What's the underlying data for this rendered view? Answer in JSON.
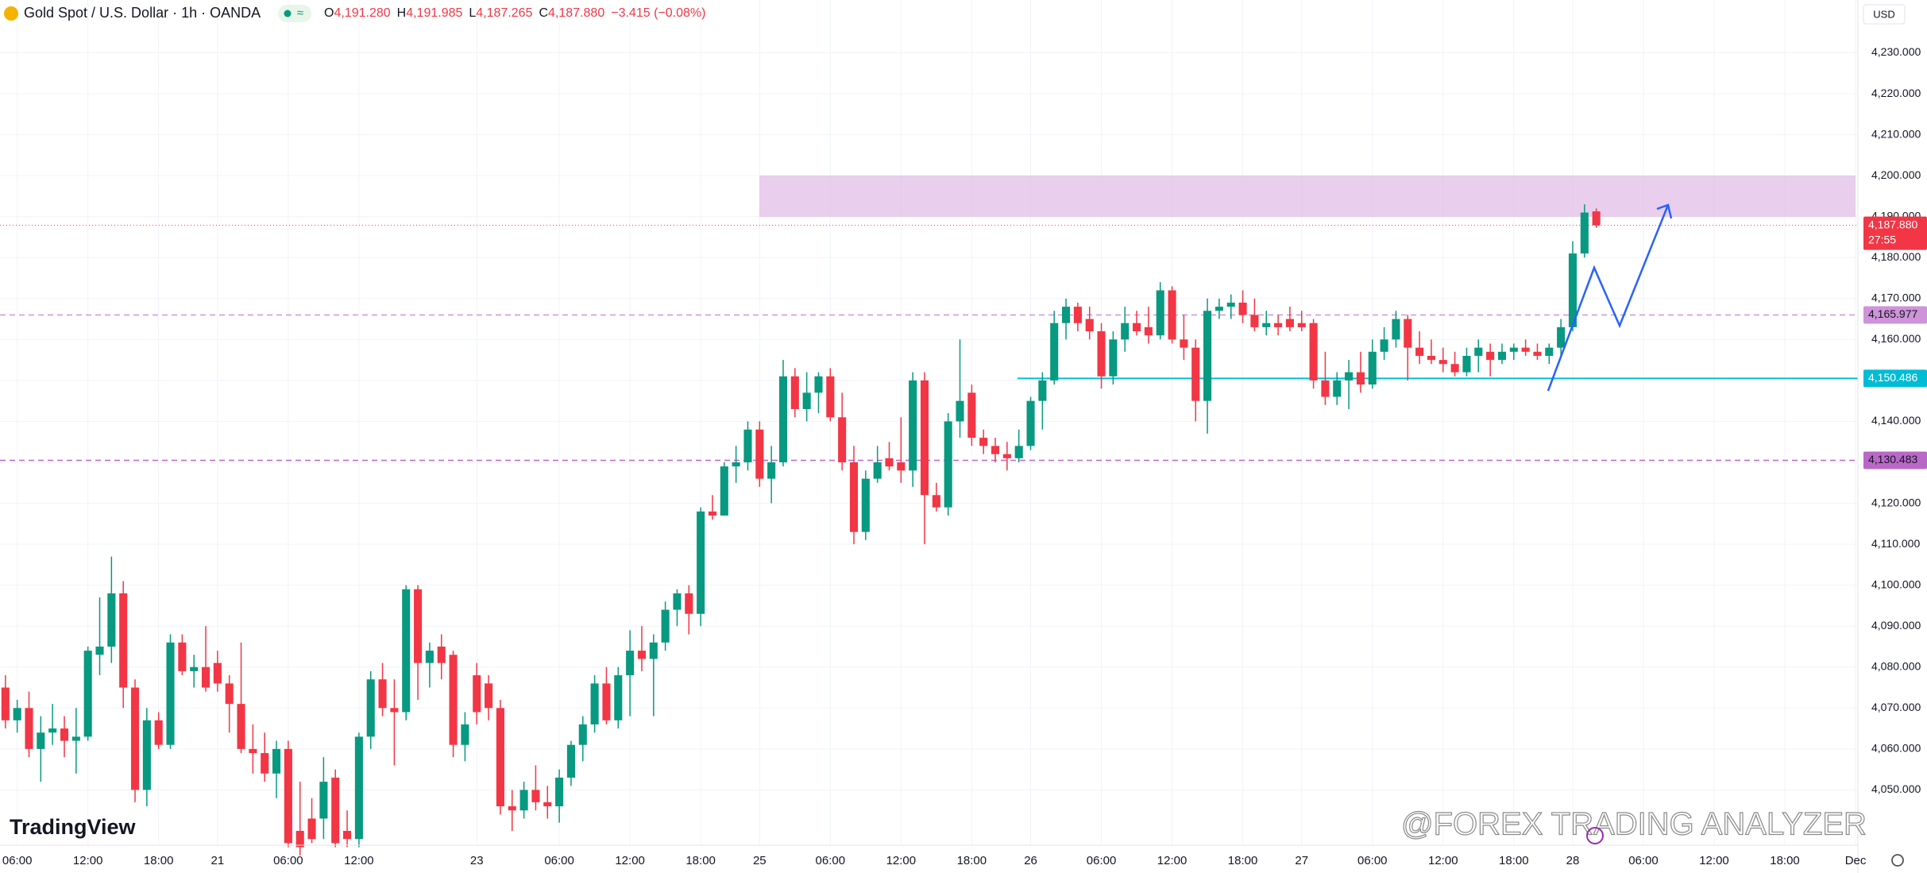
{
  "chart_data": {
    "type": "candlestick",
    "title": "Gold Spot / U.S. Dollar · 1h · OANDA",
    "legend": {
      "labels": [
        "O",
        "H",
        "L",
        "C"
      ],
      "values": [
        "4,191.280",
        "4,191.985",
        "4,187.265",
        "4,187.880"
      ],
      "change": "−3.415 (−0.08%)"
    },
    "currency": "USD",
    "up_color": "#089981",
    "down_color": "#f23645",
    "open": [
      4075,
      4067,
      4070,
      4060,
      4064,
      4065,
      4062,
      4063,
      4083,
      4085,
      4098,
      4075,
      4050,
      4067,
      4061,
      4086,
      4079,
      4080,
      4081,
      4076,
      4071,
      4060,
      4059,
      4054,
      4060,
      4040,
      4043,
      4043,
      4053,
      4040,
      4038,
      4063,
      4077,
      4070,
      4069,
      4099,
      4081,
      4085,
      4083,
      4061,
      4078,
      4076,
      4070,
      4046,
      4045,
      4050,
      4047,
      4046,
      4053,
      4061,
      4066,
      4076,
      4067,
      4078,
      4084,
      4082,
      4086,
      4094,
      4098,
      4093,
      4118,
      4117,
      4129,
      4130,
      4138,
      4126,
      4130,
      4151,
      4143,
      4147,
      4151,
      4141,
      4130,
      4113,
      4126,
      4131,
      4130,
      4128,
      4150,
      4122,
      4119,
      4140,
      4147,
      4136,
      4134,
      4132,
      4131,
      4134,
      4145,
      4150,
      4164,
      4168,
      4165,
      4162,
      4151,
      4160,
      4164,
      4163,
      4161,
      4172,
      4160,
      4158,
      4145,
      4167,
      4168,
      4169,
      4166,
      4163,
      4164,
      4165,
      4164,
      4164,
      4150,
      4146,
      4150,
      4152,
      4149,
      4157,
      4160,
      4165,
      4158,
      4156,
      4155,
      4154,
      4152,
      4156,
      4157,
      4155,
      4157,
      4158,
      4157,
      4156,
      4158,
      4163,
      4181,
      4191.28
    ],
    "high": [
      4078,
      4072,
      4074,
      4068,
      4071,
      4068,
      4070,
      4085,
      4097,
      4107,
      4101,
      4077,
      4070,
      4069,
      4088,
      4088,
      4083,
      4090,
      4084,
      4078,
      4086,
      4066,
      4064,
      4062,
      4062,
      4052,
      4048,
      4058,
      4055,
      4045,
      4064,
      4079,
      4081,
      4077,
      4100,
      4100,
      4086,
      4088,
      4084,
      4069,
      4081,
      4078,
      4072,
      4050,
      4052,
      4056,
      4051,
      4055,
      4062,
      4068,
      4078,
      4080,
      4080,
      4089,
      4090,
      4088,
      4096,
      4099,
      4100,
      4119,
      4122,
      4130,
      4134,
      4140,
      4140,
      4134,
      4155,
      4153,
      4152,
      4152,
      4153,
      4147,
      4134,
      4128,
      4134,
      4135,
      4141,
      4152,
      4152,
      4125,
      4142,
      4160,
      4149,
      4138,
      4136,
      4135,
      4138,
      4146,
      4152,
      4167,
      4170,
      4169,
      4168,
      4164,
      4162,
      4168,
      4167,
      4168,
      4174,
      4173,
      4166,
      4160,
      4170,
      4170,
      4171,
      4172,
      4170,
      4167,
      4166,
      4168,
      4167,
      4165,
      4157,
      4152,
      4155,
      4157,
      4160,
      4163,
      4167,
      4166,
      4162,
      4160,
      4158,
      4157,
      4158,
      4160,
      4159,
      4159,
      4159,
      4160,
      4159,
      4159,
      4165,
      4184,
      4193,
      4191.985
    ],
    "low": [
      4065,
      4064,
      4058,
      4052,
      4061,
      4058,
      4054,
      4062,
      4078,
      4081,
      4070,
      4047,
      4046,
      4060,
      4060,
      4078,
      4075,
      4074,
      4074,
      4064,
      4059,
      4054,
      4052,
      4048,
      4036,
      4034,
      4037,
      4038,
      4036,
      4036,
      4036,
      4060,
      4068,
      4056,
      4067,
      4072,
      4075,
      4077,
      4058,
      4057,
      4066,
      4067,
      4044,
      4040,
      4043,
      4045,
      4043,
      4042,
      4051,
      4057,
      4064,
      4066,
      4065,
      4068,
      4079,
      4068,
      4084,
      4090,
      4088,
      4090,
      4116,
      4117,
      4125,
      4128,
      4124,
      4120,
      4129,
      4141,
      4140,
      4142,
      4140,
      4128,
      4110,
      4111,
      4125,
      4128,
      4125,
      4124,
      4110,
      4118,
      4117,
      4136,
      4134,
      4132,
      4130,
      4128,
      4130,
      4133,
      4138,
      4149,
      4160,
      4162,
      4160,
      4148,
      4149,
      4157,
      4161,
      4159,
      4160,
      4159,
      4155,
      4140,
      4137,
      4165,
      4165,
      4164,
      4162,
      4161,
      4161,
      4162,
      4162,
      4148,
      4144,
      4144,
      4143,
      4147,
      4148,
      4155,
      4158,
      4150,
      4154,
      4154,
      4152,
      4151,
      4151,
      4152,
      4151,
      4154,
      4155,
      4156,
      4155,
      4154,
      4156,
      4162,
      4180,
      4187.265
    ],
    "close": [
      4067,
      4070,
      4060,
      4064,
      4065,
      4062,
      4063,
      4084,
      4085,
      4098,
      4075,
      4050,
      4067,
      4061,
      4086,
      4079,
      4080,
      4075,
      4076,
      4071,
      4060,
      4059,
      4054,
      4060,
      4037,
      4036,
      4038,
      4052,
      4037,
      4038,
      4063,
      4077,
      4070,
      4069,
      4099,
      4081,
      4084,
      4081,
      4061,
      4066,
      4069,
      4070,
      4046,
      4045,
      4050,
      4047,
      4046,
      4053,
      4061,
      4066,
      4076,
      4067,
      4078,
      4084,
      4082,
      4086,
      4094,
      4098,
      4093,
      4118,
      4117,
      4129,
      4130,
      4138,
      4126,
      4130,
      4151,
      4143,
      4147,
      4151,
      4141,
      4130,
      4113,
      4126,
      4130,
      4129,
      4128,
      4150,
      4122,
      4119,
      4140,
      4145,
      4136,
      4134,
      4132,
      4131,
      4134,
      4145,
      4150,
      4164,
      4168,
      4164,
      4162,
      4151,
      4160,
      4164,
      4162,
      4161,
      4172,
      4160,
      4158,
      4145,
      4167,
      4168,
      4169,
      4166,
      4163,
      4164,
      4163,
      4163,
      4163,
      4150,
      4146,
      4150,
      4152,
      4149,
      4157,
      4160,
      4165,
      4158,
      4156,
      4155,
      4154,
      4152,
      4156,
      4158,
      4155,
      4157,
      4158,
      4157,
      4156,
      4158,
      4163,
      4181,
      4191,
      4187.88
    ],
    "xlim": [
      -0.46,
      157.2
    ],
    "xticks": [
      {
        "value": 1,
        "label": "06:00"
      },
      {
        "value": 7,
        "label": "12:00"
      },
      {
        "value": 13,
        "label": "18:00"
      },
      {
        "value": 18,
        "label": "21"
      },
      {
        "value": 24,
        "label": "06:00"
      },
      {
        "value": 30,
        "label": "12:00"
      },
      {
        "value": 40,
        "label": "23"
      },
      {
        "value": 47,
        "label": "06:00"
      },
      {
        "value": 53,
        "label": "12:00"
      },
      {
        "value": 59,
        "label": "18:00"
      },
      {
        "value": 64,
        "label": "25"
      },
      {
        "value": 70,
        "label": "06:00"
      },
      {
        "value": 76,
        "label": "12:00"
      },
      {
        "value": 82,
        "label": "18:00"
      },
      {
        "value": 87,
        "label": "26"
      },
      {
        "value": 93,
        "label": "06:00"
      },
      {
        "value": 99,
        "label": "12:00"
      },
      {
        "value": 105,
        "label": "18:00"
      },
      {
        "value": 110,
        "label": "27"
      },
      {
        "value": 116,
        "label": "06:00"
      },
      {
        "value": 122,
        "label": "12:00"
      },
      {
        "value": 128,
        "label": "18:00"
      },
      {
        "value": 133,
        "label": "28"
      },
      {
        "value": 139,
        "label": "06:00"
      },
      {
        "value": 145,
        "label": "12:00"
      },
      {
        "value": 151,
        "label": "18:00"
      },
      {
        "value": 157,
        "label": "Dec"
      }
    ],
    "ylim": [
      4036.5,
      4242.9
    ],
    "yticks": [
      {
        "value": 4050,
        "label": "4,050.000"
      },
      {
        "value": 4060,
        "label": "4,060.000"
      },
      {
        "value": 4070,
        "label": "4,070.000"
      },
      {
        "value": 4080,
        "label": "4,080.000"
      },
      {
        "value": 4090,
        "label": "4,090.000"
      },
      {
        "value": 4100,
        "label": "4,100.000"
      },
      {
        "value": 4110,
        "label": "4,110.000"
      },
      {
        "value": 4120,
        "label": "4,120.000"
      },
      {
        "value": 4130,
        "label": "4,130.000"
      },
      {
        "value": 4140,
        "label": "4,140.000"
      },
      {
        "value": 4150,
        "label": "4,150.000"
      },
      {
        "value": 4160,
        "label": "4,160.000"
      },
      {
        "value": 4170,
        "label": "4,170.000"
      },
      {
        "value": 4180,
        "label": "4,180.000"
      },
      {
        "value": 4190,
        "label": "4,190.000"
      },
      {
        "value": 4200,
        "label": "4,200.000"
      },
      {
        "value": 4210,
        "label": "4,210.000"
      },
      {
        "value": 4220,
        "label": "4,220.000"
      },
      {
        "value": 4230,
        "label": "4,230.000"
      }
    ],
    "grid": true,
    "last_price": {
      "value": 4187.88,
      "label": "4,187.880",
      "countdown": "27:55",
      "color": "#f23645"
    },
    "levels": [
      {
        "value": 4165.977,
        "label": "4,165.977",
        "color": "#ce93d8",
        "style": "dashed"
      },
      {
        "value": 4150.486,
        "label": "4,150.486",
        "color": "#00bcd4",
        "style": "solid"
      },
      {
        "value": 4130.483,
        "label": "4,130.483",
        "color": "#ba68c8",
        "style": "dashed"
      }
    ],
    "logo": "TradingView",
    "watermark": "@FOREX TRADING ANALYZER"
  }
}
